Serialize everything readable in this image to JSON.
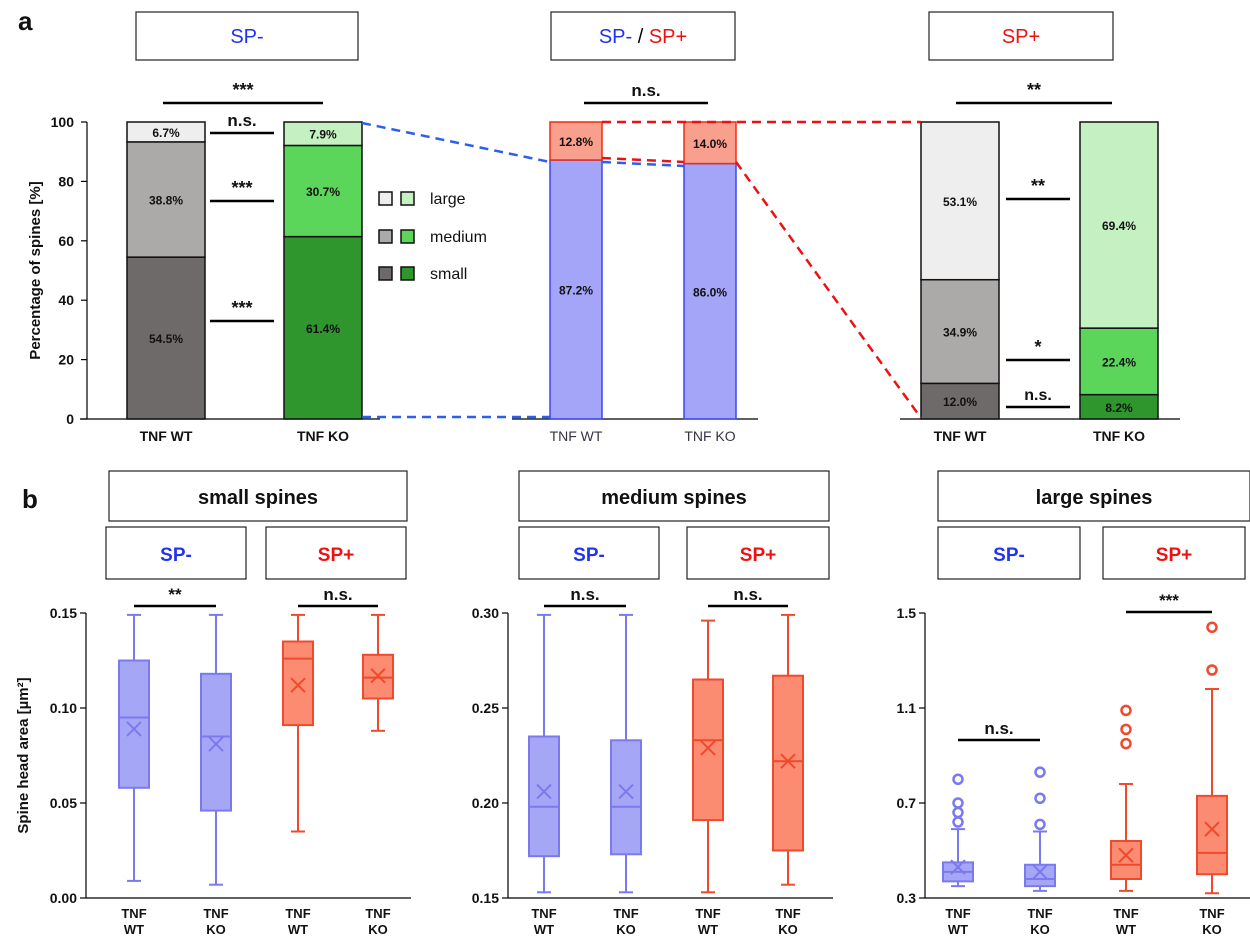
{
  "figure": {
    "panel_labels": [
      "a",
      "b"
    ],
    "colors": {
      "sp_minus_text": "#2233ee",
      "sp_plus_text": "#ee1111",
      "wt_large": "#eeeeee",
      "wt_medium": "#aca9a9",
      "wt_small": "#6f6a6a",
      "ko_large": "#c4f0c2",
      "ko_medium": "#5cd65a",
      "ko_small": "#2f952d",
      "sp_minus_fill": "#a4a4f8",
      "sp_minus_stroke": "#3a46ee",
      "sp_plus_fill": "#f89f8e",
      "sp_plus_stroke": "#ee2e12",
      "box_blue_fill": "#a6a6f6",
      "box_blue_stroke": "#7a7aee",
      "box_red_fill": "#fb8c72",
      "box_red_stroke": "#f04a2e",
      "dash_blue": "#2c5ff0",
      "dash_red": "#ee1111"
    }
  },
  "chart_data": [
    {
      "type": "bar",
      "panel": "a",
      "stacked": true,
      "header": {
        "parts": [
          {
            "text": "SP-",
            "color_key": "sp_minus_text"
          }
        ]
      },
      "categories": [
        "TNF WT",
        "TNF KO"
      ],
      "ylabel": "Percentage of spines [%]",
      "ylim": [
        0,
        100
      ],
      "ticks": [
        0,
        20,
        40,
        60,
        80,
        100
      ],
      "series": [
        {
          "name": "small",
          "values": [
            54.5,
            61.4
          ],
          "labels": [
            "54.5%",
            "61.4%"
          ]
        },
        {
          "name": "medium",
          "values": [
            38.8,
            30.7
          ],
          "labels": [
            "38.8%",
            "30.7%"
          ]
        },
        {
          "name": "large",
          "values": [
            6.7,
            7.9
          ],
          "labels": [
            "6.7%",
            "7.9%"
          ]
        }
      ],
      "legend": {
        "position": "right",
        "entries": [
          "large",
          "medium",
          "small"
        ]
      },
      "significance": {
        "overall": "***",
        "large": "n.s.",
        "medium": "***",
        "small": "***"
      }
    },
    {
      "type": "bar",
      "panel": "a",
      "stacked": true,
      "header": {
        "parts": [
          {
            "text": "SP-",
            "color_key": "sp_minus_text"
          },
          {
            "text": " / ",
            "color_key": "black"
          },
          {
            "text": "SP+",
            "color_key": "sp_plus_text"
          }
        ]
      },
      "categories": [
        "TNF WT",
        "TNF KO"
      ],
      "ylim": [
        0,
        100
      ],
      "series": [
        {
          "name": "SP-",
          "values": [
            87.2,
            86.0
          ],
          "labels": [
            "87.2%",
            "86.0%"
          ]
        },
        {
          "name": "SP+",
          "values": [
            12.8,
            14.0
          ],
          "labels": [
            "12.8%",
            "14.0%"
          ]
        }
      ],
      "significance": {
        "overall": "n.s."
      }
    },
    {
      "type": "bar",
      "panel": "a",
      "stacked": true,
      "header": {
        "parts": [
          {
            "text": "SP+",
            "color_key": "sp_plus_text"
          }
        ]
      },
      "categories": [
        "TNF WT",
        "TNF KO"
      ],
      "ylim": [
        0,
        100
      ],
      "series": [
        {
          "name": "small",
          "values": [
            12.0,
            8.2
          ],
          "labels": [
            "12.0%",
            "8.2%"
          ]
        },
        {
          "name": "medium",
          "values": [
            34.9,
            22.4
          ],
          "labels": [
            "34.9%",
            "22.4%"
          ]
        },
        {
          "name": "large",
          "values": [
            53.1,
            69.4
          ],
          "labels": [
            "53.1%",
            "69.4%"
          ]
        }
      ],
      "significance": {
        "overall": "**",
        "large": "**",
        "medium": "*",
        "small": "n.s."
      }
    },
    {
      "type": "box",
      "panel": "b",
      "title": "small spines",
      "ylabel": "Spine head area [µm²]",
      "ylim": [
        0,
        0.15
      ],
      "ticks": [
        "0.00",
        "0.05",
        "0.10",
        "0.15"
      ],
      "groups": [
        {
          "header": "SP-",
          "color": "blue",
          "significance": "**",
          "boxes": [
            {
              "label": [
                "TNF",
                "WT"
              ],
              "min": 0.009,
              "q1": 0.058,
              "median": 0.095,
              "q3": 0.125,
              "max": 0.149,
              "mean": 0.089,
              "outliers": []
            },
            {
              "label": [
                "TNF",
                "KO"
              ],
              "min": 0.007,
              "q1": 0.046,
              "median": 0.085,
              "q3": 0.118,
              "max": 0.149,
              "mean": 0.081,
              "outliers": []
            }
          ]
        },
        {
          "header": "SP+",
          "color": "red",
          "significance": "n.s.",
          "boxes": [
            {
              "label": [
                "TNF",
                "WT"
              ],
              "min": 0.035,
              "q1": 0.091,
              "median": 0.126,
              "q3": 0.135,
              "max": 0.149,
              "mean": 0.112,
              "outliers": []
            },
            {
              "label": [
                "TNF",
                "KO"
              ],
              "min": 0.088,
              "q1": 0.105,
              "median": 0.116,
              "q3": 0.128,
              "max": 0.149,
              "mean": 0.117,
              "outliers": []
            }
          ]
        }
      ]
    },
    {
      "type": "box",
      "panel": "b",
      "title": "medium spines",
      "ylim": [
        0.15,
        0.3
      ],
      "ticks": [
        "0.15",
        "0.20",
        "0.25",
        "0.30"
      ],
      "groups": [
        {
          "header": "SP-",
          "color": "blue",
          "significance": "n.s.",
          "boxes": [
            {
              "label": [
                "TNF",
                "WT"
              ],
              "min": 0.153,
              "q1": 0.172,
              "median": 0.198,
              "q3": 0.235,
              "max": 0.299,
              "mean": 0.206,
              "outliers": []
            },
            {
              "label": [
                "TNF",
                "KO"
              ],
              "min": 0.153,
              "q1": 0.173,
              "median": 0.198,
              "q3": 0.233,
              "max": 0.299,
              "mean": 0.206,
              "outliers": []
            }
          ]
        },
        {
          "header": "SP+",
          "color": "red",
          "significance": "n.s.",
          "boxes": [
            {
              "label": [
                "TNF",
                "WT"
              ],
              "min": 0.153,
              "q1": 0.191,
              "median": 0.233,
              "q3": 0.265,
              "max": 0.296,
              "mean": 0.229,
              "outliers": []
            },
            {
              "label": [
                "TNF",
                "KO"
              ],
              "min": 0.157,
              "q1": 0.175,
              "median": 0.222,
              "q3": 0.267,
              "max": 0.299,
              "mean": 0.222,
              "outliers": []
            }
          ]
        }
      ]
    },
    {
      "type": "box",
      "panel": "b",
      "title": "large spines",
      "ylim": [
        0.3,
        1.5
      ],
      "ticks": [
        "0.3",
        "0.7",
        "1.1",
        "1.5"
      ],
      "groups": [
        {
          "header": "SP-",
          "color": "blue",
          "significance": "n.s.",
          "boxes": [
            {
              "label": [
                "TNF",
                "WT"
              ],
              "min": 0.35,
              "q1": 0.37,
              "median": 0.41,
              "q3": 0.45,
              "max": 0.59,
              "mean": 0.43,
              "outliers": [
                0.62,
                0.66,
                0.7,
                0.8
              ]
            },
            {
              "label": [
                "TNF",
                "KO"
              ],
              "min": 0.33,
              "q1": 0.35,
              "median": 0.38,
              "q3": 0.44,
              "max": 0.58,
              "mean": 0.41,
              "outliers": [
                0.61,
                0.72,
                0.83
              ]
            }
          ]
        },
        {
          "header": "SP+",
          "color": "red",
          "significance": "***",
          "boxes": [
            {
              "label": [
                "TNF",
                "WT"
              ],
              "min": 0.33,
              "q1": 0.38,
              "median": 0.44,
              "q3": 0.54,
              "max": 0.78,
              "mean": 0.48,
              "outliers": [
                0.95,
                1.01,
                1.09
              ]
            },
            {
              "label": [
                "TNF",
                "KO"
              ],
              "min": 0.32,
              "q1": 0.4,
              "median": 0.49,
              "q3": 0.73,
              "max": 1.18,
              "mean": 0.59,
              "outliers": [
                1.26,
                1.44
              ]
            }
          ]
        }
      ]
    }
  ]
}
